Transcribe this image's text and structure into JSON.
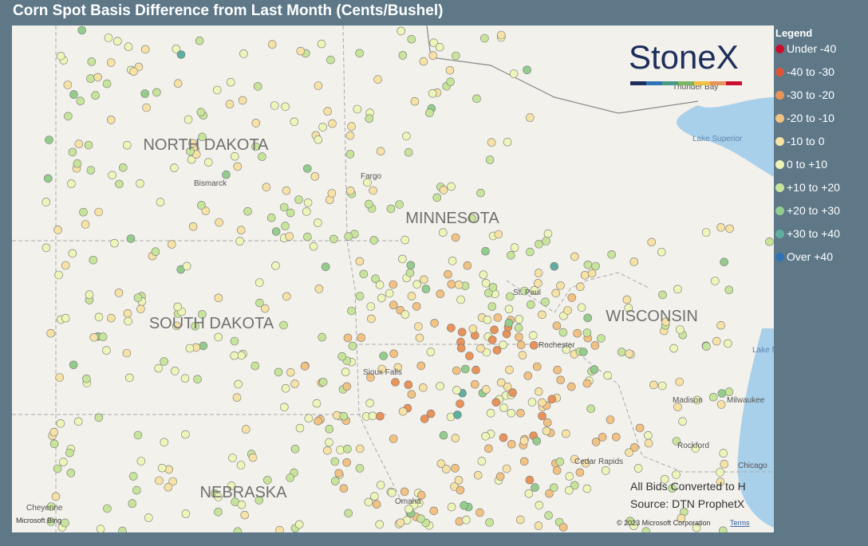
{
  "header": {
    "title": "Corn Spot Basis Difference from Last Month (Cents/Bushel)"
  },
  "legend": {
    "title": "Legend",
    "items": [
      {
        "label": "Under -40",
        "color": "#c8102e"
      },
      {
        "label": "-40 to -30",
        "color": "#e0553a"
      },
      {
        "label": "-30 to -20",
        "color": "#e8935a"
      },
      {
        "label": "-20 to -10",
        "color": "#f2c283"
      },
      {
        "label": "-10 to 0",
        "color": "#f7e2a6"
      },
      {
        "label": "0 to +10",
        "color": "#eef5b8"
      },
      {
        "label": "+10 to +20",
        "color": "#c7e59a"
      },
      {
        "label": "+20 to +30",
        "color": "#93cc8c"
      },
      {
        "label": "+30 to +40",
        "color": "#5fae9f"
      },
      {
        "label": "Over +40",
        "color": "#2f73b5"
      }
    ]
  },
  "map": {
    "states": [
      "NORTH DAKOTA",
      "MINNESOTA",
      "SOUTH DAKOTA",
      "WISCONSIN",
      "NEBRASKA"
    ],
    "cities": [
      "Fargo",
      "Bismarck",
      "St. Paul",
      "Rochester",
      "Sioux Falls",
      "Madison",
      "Milwaukee",
      "Rockford",
      "Cedar Rapids",
      "Chicago",
      "Omaha",
      "Cheyenne",
      "Thunder Bay"
    ],
    "water": [
      "Lake Superior",
      "Lake Michigan"
    ]
  },
  "logo": "StoneX",
  "notes": [
    "All Bids Converted to H",
    "Source: DTN ProphetX"
  ],
  "footer": {
    "provider": "Microsoft Bing",
    "copyright": "© 2023 Microsoft Corporation",
    "terms": "Terms"
  }
}
